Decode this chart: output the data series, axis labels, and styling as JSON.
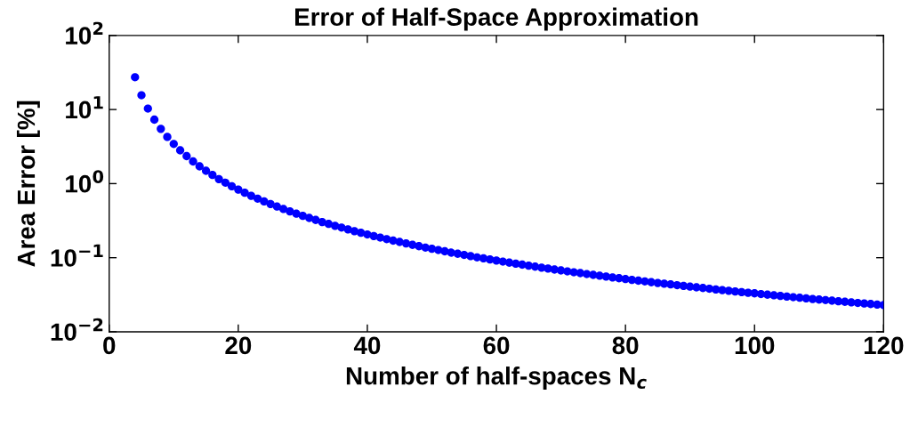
{
  "chart_data": {
    "type": "scatter",
    "title": "Error of Half-Space Approximation",
    "xlabel": "Number of half-spaces N$_{c}$",
    "ylabel": "Area Error [%]",
    "x": [
      4,
      5,
      6,
      7,
      8,
      9,
      10,
      11,
      12,
      13,
      14,
      15,
      16,
      17,
      18,
      19,
      20,
      21,
      22,
      23,
      24,
      25,
      26,
      27,
      28,
      29,
      30,
      31,
      32,
      33,
      34,
      35,
      36,
      37,
      38,
      39,
      40,
      41,
      42,
      43,
      44,
      45,
      46,
      47,
      48,
      49,
      50,
      51,
      52,
      53,
      54,
      55,
      56,
      57,
      58,
      59,
      60,
      61,
      62,
      63,
      64,
      65,
      66,
      67,
      68,
      69,
      70,
      71,
      72,
      73,
      74,
      75,
      76,
      77,
      78,
      79,
      80,
      81,
      82,
      83,
      84,
      85,
      86,
      87,
      88,
      89,
      90,
      91,
      92,
      93,
      94,
      95,
      96,
      97,
      98,
      99,
      100,
      101,
      102,
      103,
      104,
      105,
      106,
      107,
      108,
      109,
      110,
      111,
      112,
      113,
      114,
      115,
      116,
      117,
      118,
      119,
      120
    ],
    "series": [
      {
        "color": "#0000ff",
        "values": [
          27.3,
          15.6,
          10.3,
          7.3,
          5.48,
          4.27,
          3.43,
          2.81,
          2.35,
          1.99,
          1.71,
          1.49,
          1.31,
          1.15,
          1.03,
          0.921,
          0.831,
          0.753,
          0.685,
          0.627,
          0.575,
          0.53,
          0.49,
          0.454,
          0.422,
          0.393,
          0.367,
          0.344,
          0.323,
          0.303,
          0.286,
          0.269,
          0.255,
          0.241,
          0.228,
          0.217,
          0.206,
          0.196,
          0.187,
          0.178,
          0.17,
          0.163,
          0.156,
          0.149,
          0.143,
          0.137,
          0.132,
          0.127,
          0.122,
          0.117,
          0.113,
          0.109,
          0.105,
          0.101,
          0.098,
          0.0947,
          0.0916,
          0.0886,
          0.0858,
          0.0831,
          0.0805,
          0.078,
          0.0757,
          0.0734,
          0.0713,
          0.0692,
          0.0673,
          0.0654,
          0.0636,
          0.0619,
          0.0602,
          0.0586,
          0.0571,
          0.0556,
          0.0542,
          0.0528,
          0.0515,
          0.0502,
          0.049,
          0.0479,
          0.0467,
          0.0456,
          0.0446,
          0.0436,
          0.0426,
          0.0416,
          0.0407,
          0.0398,
          0.039,
          0.0381,
          0.0373,
          0.0365,
          0.0358,
          0.035,
          0.0343,
          0.0336,
          0.033,
          0.0323,
          0.0317,
          0.0311,
          0.0305,
          0.0299,
          0.0293,
          0.0288,
          0.0283,
          0.0277,
          0.0272,
          0.0268,
          0.0263,
          0.0258,
          0.0254,
          0.0249,
          0.0245,
          0.0241,
          0.0237,
          0.0233,
          0.0229
        ]
      }
    ],
    "xlim": [
      0,
      120
    ],
    "xticks": [
      0,
      20,
      40,
      60,
      80,
      100,
      120
    ],
    "ylim": [
      0.01,
      100
    ],
    "yticks": [
      {
        "value": 0.01,
        "label": "10$^{−2}$"
      },
      {
        "value": 0.1,
        "label": "10$^{−1}$"
      },
      {
        "value": 1,
        "label": "10$^{0}$"
      },
      {
        "value": 10,
        "label": "10$^{1}$"
      },
      {
        "value": 100,
        "label": "10$^{2}$"
      }
    ],
    "log": "y",
    "marker": "circle",
    "grid": false,
    "legend": false
  }
}
